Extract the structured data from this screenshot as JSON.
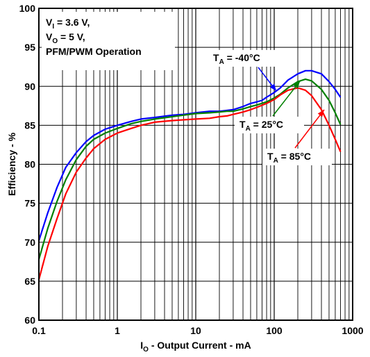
{
  "chart_data": {
    "type": "line",
    "title": "",
    "xlabel": {
      "main": "I",
      "sub": "O",
      "rest": " - Output Current - mA"
    },
    "ylabel": "Efficiency - %",
    "xscale": "log",
    "xlim": [
      0.1,
      1000
    ],
    "ylim": [
      60,
      100
    ],
    "grid": true,
    "x_tick_labels": [
      "0.1",
      "1",
      "10",
      "100",
      "1000"
    ],
    "y_tick_labels": [
      "60",
      "65",
      "70",
      "75",
      "80",
      "85",
      "90",
      "95",
      "100"
    ],
    "conditions": [
      {
        "main": "V",
        "sub": "I",
        "rest": " = 3.6 V,"
      },
      {
        "main": "V",
        "sub": "O",
        "rest": " = 5 V,"
      },
      {
        "main": "PFM/PWM Operation",
        "sub": "",
        "rest": ""
      }
    ],
    "series": [
      {
        "name": "T_A = -40°C",
        "label": {
          "main": "T",
          "sub": "A",
          "rest": " = -40°C"
        },
        "color": "#0000ff",
        "points": [
          [
            0.1,
            70.2
          ],
          [
            0.13,
            73.8
          ],
          [
            0.17,
            77.0
          ],
          [
            0.22,
            79.6
          ],
          [
            0.3,
            81.5
          ],
          [
            0.4,
            82.9
          ],
          [
            0.5,
            83.7
          ],
          [
            0.7,
            84.5
          ],
          [
            1,
            85.0
          ],
          [
            1.5,
            85.5
          ],
          [
            2,
            85.8
          ],
          [
            3,
            86.0
          ],
          [
            5,
            86.3
          ],
          [
            7,
            86.4
          ],
          [
            10,
            86.6
          ],
          [
            15,
            86.8
          ],
          [
            20,
            86.8
          ],
          [
            25,
            86.9
          ],
          [
            30,
            87.0
          ],
          [
            40,
            87.4
          ],
          [
            50,
            87.8
          ],
          [
            60,
            88.0
          ],
          [
            70,
            88.2
          ],
          [
            80,
            88.6
          ],
          [
            100,
            89.2
          ],
          [
            120,
            89.8
          ],
          [
            150,
            90.8
          ],
          [
            200,
            91.6
          ],
          [
            250,
            92.0
          ],
          [
            300,
            92.0
          ],
          [
            400,
            91.6
          ],
          [
            500,
            90.6
          ],
          [
            600,
            89.6
          ],
          [
            700,
            88.6
          ]
        ]
      },
      {
        "name": "T_A = 25°C",
        "label": {
          "main": "T",
          "sub": "A",
          "rest": " = 25°C"
        },
        "color": "#008000",
        "points": [
          [
            0.1,
            67.8
          ],
          [
            0.13,
            71.8
          ],
          [
            0.17,
            75.2
          ],
          [
            0.22,
            78.0
          ],
          [
            0.3,
            80.6
          ],
          [
            0.4,
            82.3
          ],
          [
            0.5,
            83.2
          ],
          [
            0.7,
            84.0
          ],
          [
            1,
            84.6
          ],
          [
            1.5,
            85.2
          ],
          [
            2,
            85.5
          ],
          [
            3,
            85.8
          ],
          [
            5,
            86.1
          ],
          [
            7,
            86.3
          ],
          [
            10,
            86.5
          ],
          [
            15,
            86.6
          ],
          [
            20,
            86.7
          ],
          [
            25,
            86.8
          ],
          [
            30,
            86.8
          ],
          [
            40,
            87.1
          ],
          [
            50,
            87.4
          ],
          [
            60,
            87.6
          ],
          [
            80,
            88.0
          ],
          [
            100,
            88.5
          ],
          [
            120,
            89.0
          ],
          [
            150,
            89.8
          ],
          [
            200,
            90.6
          ],
          [
            250,
            90.9
          ],
          [
            300,
            90.7
          ],
          [
            400,
            89.6
          ],
          [
            500,
            88.2
          ],
          [
            600,
            86.6
          ],
          [
            700,
            85.1
          ]
        ]
      },
      {
        "name": "T_A = 85°C",
        "label": {
          "main": "T",
          "sub": "A",
          "rest": " = 85°C"
        },
        "color": "#ff0000",
        "points": [
          [
            0.1,
            65.2
          ],
          [
            0.13,
            69.5
          ],
          [
            0.17,
            73.0
          ],
          [
            0.22,
            76.2
          ],
          [
            0.3,
            79.0
          ],
          [
            0.4,
            80.8
          ],
          [
            0.5,
            82.0
          ],
          [
            0.7,
            83.2
          ],
          [
            1,
            84.0
          ],
          [
            1.5,
            84.6
          ],
          [
            2,
            85.0
          ],
          [
            3,
            85.4
          ],
          [
            5,
            85.6
          ],
          [
            7,
            85.7
          ],
          [
            10,
            85.8
          ],
          [
            15,
            85.9
          ],
          [
            20,
            86.1
          ],
          [
            25,
            86.2
          ],
          [
            30,
            86.4
          ],
          [
            40,
            86.7
          ],
          [
            50,
            87.0
          ],
          [
            60,
            87.3
          ],
          [
            80,
            87.8
          ],
          [
            100,
            88.3
          ],
          [
            120,
            88.9
          ],
          [
            150,
            89.5
          ],
          [
            200,
            89.8
          ],
          [
            250,
            89.5
          ],
          [
            300,
            88.8
          ],
          [
            400,
            87.0
          ],
          [
            500,
            85.0
          ],
          [
            600,
            83.2
          ],
          [
            700,
            81.6
          ]
        ]
      }
    ]
  }
}
